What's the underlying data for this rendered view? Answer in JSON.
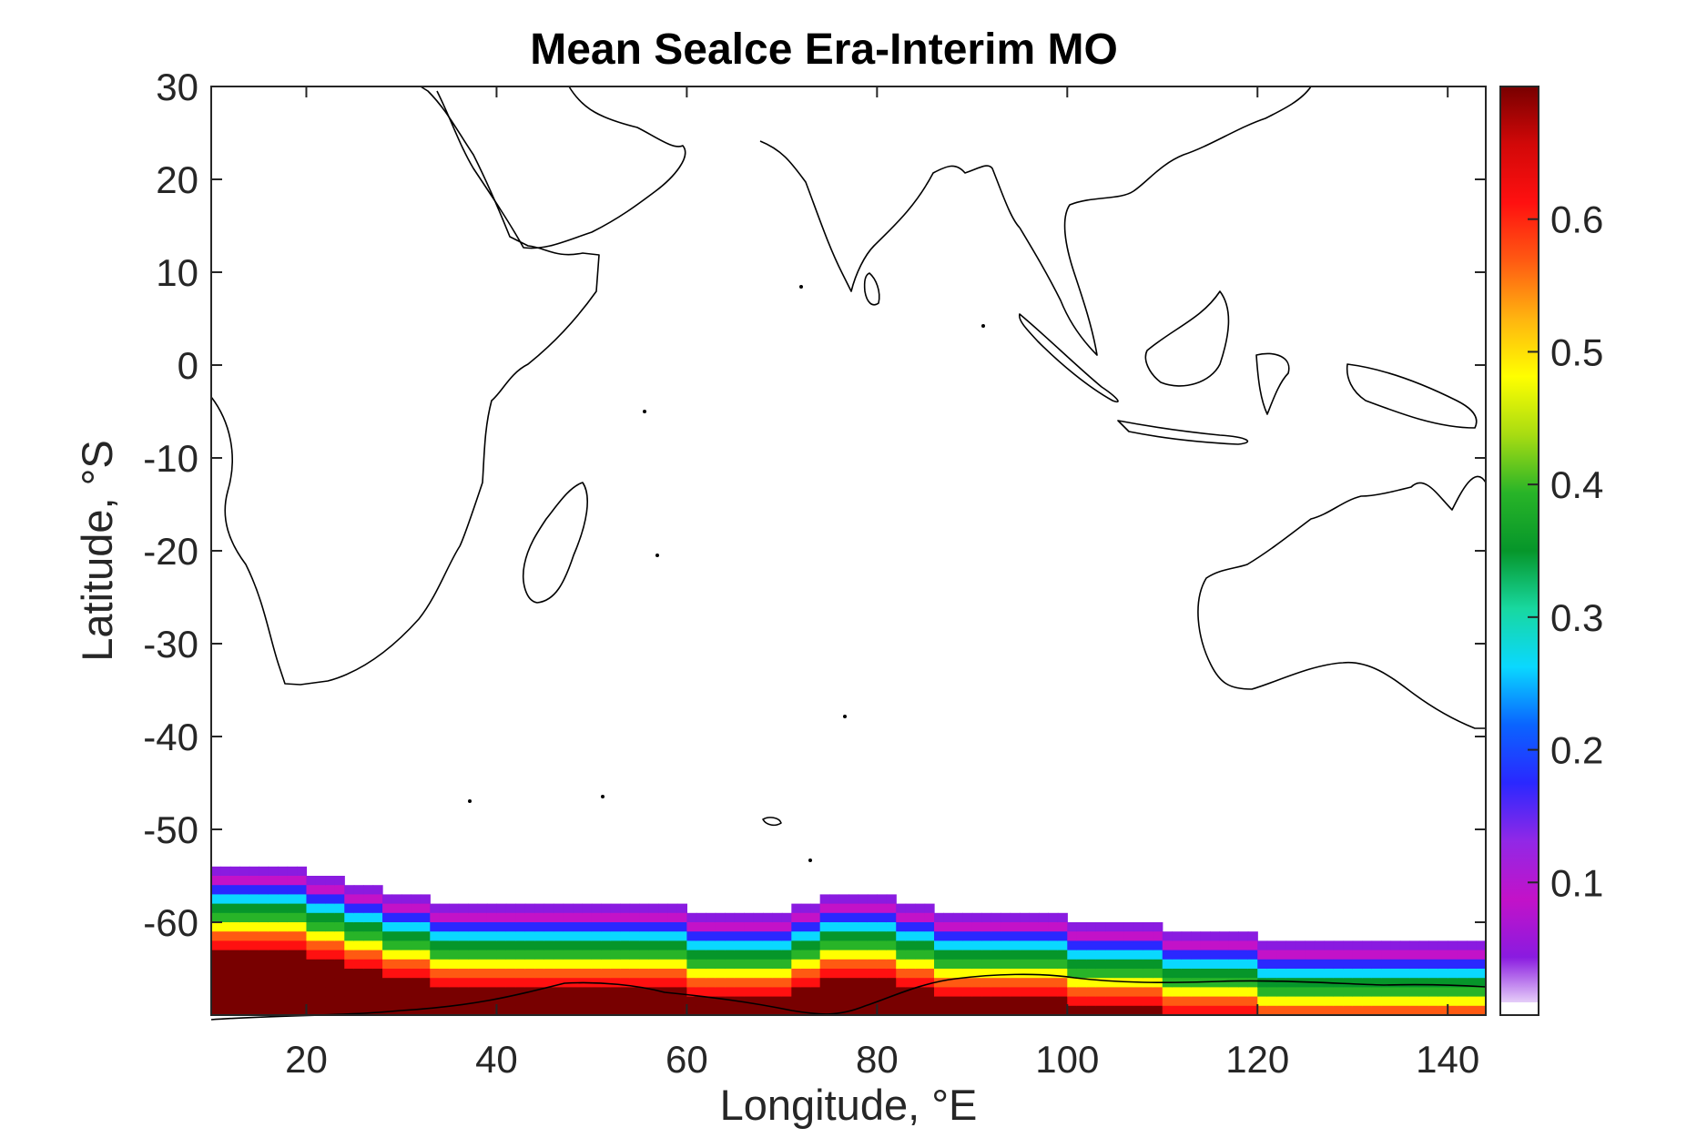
{
  "chart_data": {
    "type": "heatmap",
    "title": "Mean Sealce Era-Interim MO",
    "xlabel": "Longitude, °E",
    "ylabel": "Latitude, °S",
    "xlim": [
      10,
      144
    ],
    "ylim": [
      -70,
      30
    ],
    "xticks": [
      "20",
      "40",
      "60",
      "80",
      "100",
      "120",
      "140"
    ],
    "yticks": [
      "30",
      "20",
      "10",
      "0",
      "-10",
      "-20",
      "-30",
      "-40",
      "-50",
      "-60"
    ],
    "colorbar": {
      "range": [
        0,
        0.7
      ],
      "ticks": [
        "0.1",
        "0.2",
        "0.3",
        "0.4",
        "0.5",
        "0.6"
      ],
      "colormap": [
        "#ffffff",
        "#8a1be0",
        "#c312c8",
        "#9128e6",
        "#2a28ff",
        "#0a64ff",
        "#0ad8ff",
        "#18d8a0",
        "#06962a",
        "#28b428",
        "#a8dc12",
        "#ffff00",
        "#ffb410",
        "#ff5a12",
        "#ff1010",
        "#d20808",
        "#780000"
      ]
    },
    "sea_ice_edge": {
      "longitude": [
        10,
        20,
        30,
        40,
        50,
        60,
        70,
        76,
        80,
        90,
        100,
        110,
        120,
        130,
        144
      ],
      "outer_edge_latitude": [
        -53.5,
        -54.5,
        -57,
        -58.5,
        -58.5,
        -58.5,
        -59,
        -57,
        -57,
        -59.5,
        -59.5,
        -60.5,
        -61.5,
        -62,
        -62
      ]
    },
    "grid": false,
    "legend": "none"
  }
}
